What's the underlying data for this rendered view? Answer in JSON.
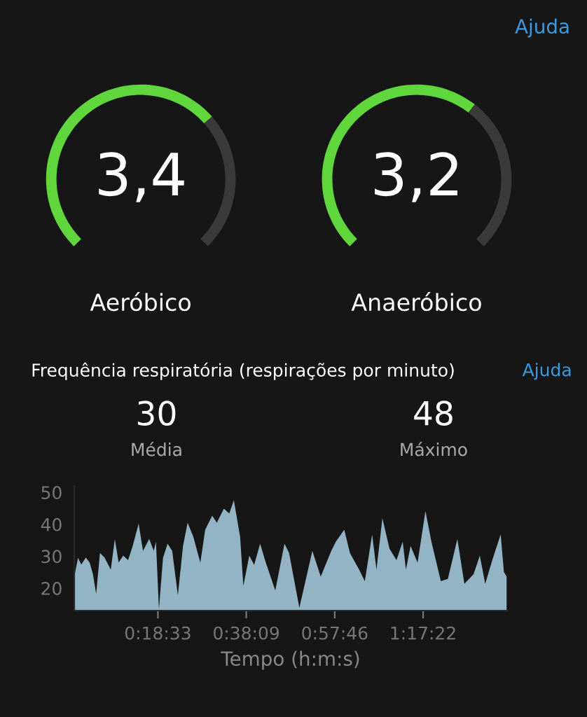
{
  "chart_data": [
    {
      "type": "donut",
      "categories": [
        null,
        null
      ],
      "values": [
        68,
        32
      ],
      "colors": [
        "#5fd63c",
        "#3a3a3a"
      ],
      "xlabel": "Aeróbico",
      "annotations": [
        "3,4"
      ]
    },
    {
      "type": "donut",
      "categories": [
        null,
        null
      ],
      "values": [
        64,
        36
      ],
      "colors": [
        "#5fd63c",
        "#3a3a3a"
      ],
      "xlabel": "Anaeróbico",
      "annotations": [
        "3,2",
        "Ajuda"
      ]
    },
    {
      "type": "area",
      "title": "Frequência respiratória (respirações por minuto)",
      "xlabel": "Tempo (h:m:s)",
      "x": [
        0.0,
        0.014,
        0.026,
        0.043,
        0.057,
        0.069,
        0.081,
        0.095,
        0.112,
        0.135,
        0.15,
        0.164,
        0.181,
        0.199,
        0.216,
        0.238,
        0.254,
        0.277,
        0.294,
        0.302,
        0.313,
        0.328,
        0.345,
        0.362,
        0.383,
        0.402,
        0.419,
        0.44,
        0.466,
        0.484,
        0.51,
        0.527,
        0.553,
        0.573,
        0.59,
        0.613,
        0.625,
        0.647,
        0.665,
        0.687,
        0.708,
        0.743,
        0.777,
        0.794,
        0.832,
        0.88,
        0.911,
        0.95,
        0.967,
        0.998,
        1.019,
        1.053,
        1.074,
        1.101,
        1.117,
        1.139,
        1.165,
        1.191,
        1.214,
        1.226,
        1.243,
        1.269,
        1.298,
        1.32,
        1.355,
        1.381,
        1.416,
        1.442,
        1.476,
        1.499,
        1.519,
        1.545,
        1.576,
        1.588,
        1.598
      ],
      "series": [
        {
          "color": "#93b4c5",
          "values": [
            23.6,
            29.5,
            27.4,
            29.6,
            28,
            24.4,
            18.2,
            31,
            29.6,
            25.8,
            35.4,
            28,
            30.2,
            28.8,
            33.2,
            40.2,
            31.7,
            35.4,
            31.7,
            34.6,
            13.4,
            29.5,
            33.9,
            31.7,
            17.8,
            33.2,
            40.5,
            36.1,
            28,
            38.3,
            42.7,
            40.5,
            44.9,
            43.4,
            47.5,
            36.1,
            20.7,
            30.2,
            27.3,
            33.9,
            28,
            19.3,
            33.9,
            31,
            13.9,
            31.7,
            23.6,
            31.7,
            34.6,
            38.3,
            31,
            25.8,
            22.2,
            36.8,
            25.8,
            41.9,
            32.4,
            28.8,
            34.6,
            25.8,
            33.2,
            28,
            44.1,
            34.6,
            22.2,
            22.9,
            35.4,
            21.4,
            24.4,
            30.2,
            21.4,
            28.8,
            36.8,
            25.1,
            23.6
          ]
        }
      ],
      "xlim": [
        0,
        1.6
      ],
      "xticks": [
        {
          "value": 0.3092,
          "label": "0:18:33"
        },
        {
          "value": 0.6358,
          "label": "0:38:09"
        },
        {
          "value": 0.9628,
          "label": "0:57:46"
        },
        {
          "value": 1.2894,
          "label": "1:17:22"
        }
      ],
      "ylim": [
        13,
        52
      ],
      "yticks": [
        20,
        30,
        40,
        50
      ],
      "annotations": [
        "30",
        "Média",
        "48",
        "Máximo",
        "Ajuda"
      ]
    }
  ]
}
